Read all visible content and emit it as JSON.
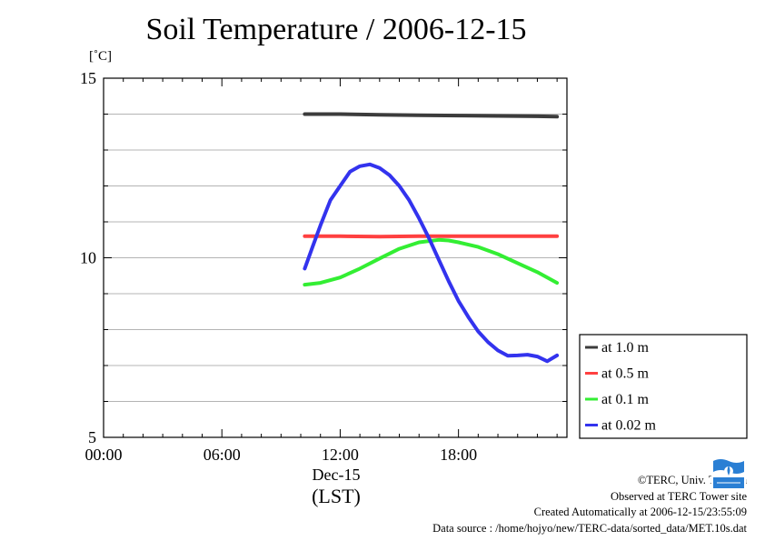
{
  "title": "Soil Temperature / 2006-12-15",
  "unit_label": "[˚C]",
  "date_label": "Dec-15",
  "tz_label": "(LST)",
  "footer": {
    "copyright": "©TERC, Univ. Tsukuba",
    "observed": "Observed at TERC Tower site",
    "created": "Created Automatically at 2006-12-15/23:55:09",
    "source": "Data source : /home/hojyo/new/TERC-data/sorted_data/MET.10s.dat"
  },
  "logo_icon": "terc-logo-icon",
  "chart_data": {
    "type": "line",
    "title": "Soil Temperature / 2006-12-15",
    "ylabel": "[˚C]",
    "xlabel": "(LST)",
    "xlim": [
      0,
      23.5
    ],
    "ylim": [
      5,
      15
    ],
    "x_ticks": [
      0,
      6,
      12,
      18
    ],
    "x_tick_labels": [
      "00:00",
      "06:00",
      "12:00",
      "18:00"
    ],
    "y_ticks": [
      5,
      10,
      15
    ],
    "y_tick_labels": [
      "5",
      "10",
      "15"
    ],
    "grid": "horizontal",
    "grid_step": 1,
    "legend_position": "bottom-right",
    "series": [
      {
        "name": "at 1.0 m",
        "color": "#3c3c3c",
        "points": [
          [
            10.2,
            14.0
          ],
          [
            12,
            14.0
          ],
          [
            14,
            13.98
          ],
          [
            16,
            13.97
          ],
          [
            18,
            13.96
          ],
          [
            20,
            13.95
          ],
          [
            22,
            13.94
          ],
          [
            23.0,
            13.93
          ]
        ]
      },
      {
        "name": "at 0.5 m",
        "color": "#ff4040",
        "points": [
          [
            10.2,
            10.6
          ],
          [
            12,
            10.6
          ],
          [
            14,
            10.59
          ],
          [
            16,
            10.6
          ],
          [
            18,
            10.6
          ],
          [
            20,
            10.6
          ],
          [
            22,
            10.6
          ],
          [
            23.0,
            10.6
          ]
        ]
      },
      {
        "name": "at 0.1 m",
        "color": "#33ee33",
        "points": [
          [
            10.2,
            9.25
          ],
          [
            11,
            9.3
          ],
          [
            12,
            9.45
          ],
          [
            13,
            9.7
          ],
          [
            14,
            9.98
          ],
          [
            15,
            10.25
          ],
          [
            16,
            10.43
          ],
          [
            17,
            10.5
          ],
          [
            17.5,
            10.48
          ],
          [
            18,
            10.43
          ],
          [
            19,
            10.3
          ],
          [
            20,
            10.1
          ],
          [
            21,
            9.85
          ],
          [
            22,
            9.6
          ],
          [
            23.0,
            9.3
          ]
        ]
      },
      {
        "name": "at 0.02 m",
        "color": "#3333ee",
        "points": [
          [
            10.2,
            9.7
          ],
          [
            10.6,
            10.3
          ],
          [
            11,
            10.9
          ],
          [
            11.5,
            11.6
          ],
          [
            12,
            12.0
          ],
          [
            12.5,
            12.4
          ],
          [
            13,
            12.55
          ],
          [
            13.5,
            12.6
          ],
          [
            14,
            12.5
          ],
          [
            14.5,
            12.3
          ],
          [
            15,
            12.0
          ],
          [
            15.5,
            11.6
          ],
          [
            16,
            11.1
          ],
          [
            16.5,
            10.55
          ],
          [
            17,
            9.95
          ],
          [
            17.5,
            9.35
          ],
          [
            18,
            8.8
          ],
          [
            18.5,
            8.35
          ],
          [
            19,
            7.95
          ],
          [
            19.5,
            7.65
          ],
          [
            20,
            7.42
          ],
          [
            20.5,
            7.27
          ],
          [
            21,
            7.28
          ],
          [
            21.5,
            7.3
          ],
          [
            22,
            7.25
          ],
          [
            22.5,
            7.12
          ],
          [
            23.0,
            7.28
          ]
        ]
      }
    ]
  }
}
